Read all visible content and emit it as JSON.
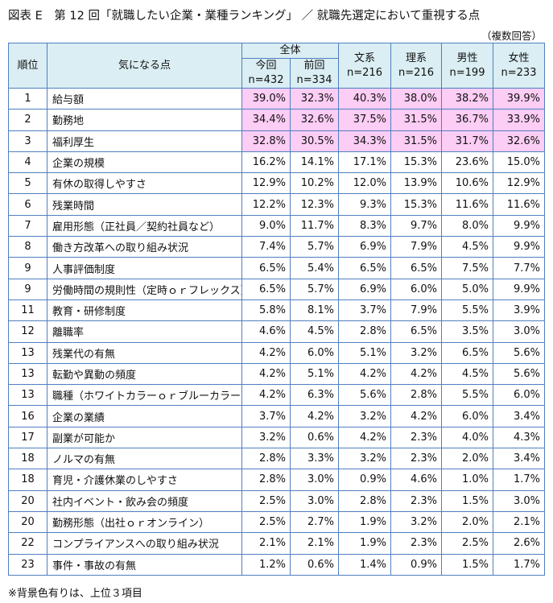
{
  "title": "図表 E　第 12 回「就職したい企業・業種ランキング」 ／ 就職先選定において重視する点",
  "note": "（複数回答）",
  "table": {
    "header": {
      "rank": "順位",
      "item": "気になる点",
      "group": "全体",
      "columns": [
        {
          "label": "今回",
          "n": "n=432"
        },
        {
          "label": "前回",
          "n": "n=334"
        },
        {
          "label": "文系",
          "n": "n=216"
        },
        {
          "label": "理系",
          "n": "n=216"
        },
        {
          "label": "男性",
          "n": "n=199"
        },
        {
          "label": "女性",
          "n": "n=233"
        }
      ]
    },
    "rows": [
      [
        "1",
        "給与額",
        "39.0%",
        "32.3%",
        "40.3%",
        "38.0%",
        "38.2%",
        "39.9%"
      ],
      [
        "2",
        "勤務地",
        "34.4%",
        "32.6%",
        "37.5%",
        "31.5%",
        "36.7%",
        "33.9%"
      ],
      [
        "3",
        "福利厚生",
        "32.8%",
        "30.5%",
        "34.3%",
        "31.5%",
        "31.7%",
        "32.6%"
      ],
      [
        "4",
        "企業の規模",
        "16.2%",
        "14.1%",
        "17.1%",
        "15.3%",
        "23.6%",
        "15.0%"
      ],
      [
        "5",
        "有休の取得しやすさ",
        "12.9%",
        "10.2%",
        "12.0%",
        "13.9%",
        "10.6%",
        "12.9%"
      ],
      [
        "6",
        "残業時間",
        "12.2%",
        "12.3%",
        "9.3%",
        "15.3%",
        "11.6%",
        "11.6%"
      ],
      [
        "7",
        "雇用形態（正社員／契約社員など）",
        "9.0%",
        "11.7%",
        "8.3%",
        "9.7%",
        "8.0%",
        "9.9%"
      ],
      [
        "8",
        "働き方改革への取り組み状況",
        "7.4%",
        "5.7%",
        "6.9%",
        "7.9%",
        "4.5%",
        "9.9%"
      ],
      [
        "9",
        "人事評価制度",
        "6.5%",
        "5.4%",
        "6.5%",
        "6.5%",
        "7.5%",
        "7.7%"
      ],
      [
        "9",
        "労働時間の規則性（定時ｏｒフレックス）",
        "6.5%",
        "5.7%",
        "6.9%",
        "6.0%",
        "5.0%",
        "9.9%"
      ],
      [
        "11",
        "教育・研修制度",
        "5.8%",
        "8.1%",
        "3.7%",
        "7.9%",
        "5.5%",
        "3.9%"
      ],
      [
        "12",
        "離職率",
        "4.6%",
        "4.5%",
        "2.8%",
        "6.5%",
        "3.5%",
        "3.0%"
      ],
      [
        "13",
        "残業代の有無",
        "4.2%",
        "6.0%",
        "5.1%",
        "3.2%",
        "6.5%",
        "5.6%"
      ],
      [
        "13",
        "転勤や異動の頻度",
        "4.2%",
        "5.1%",
        "4.2%",
        "4.2%",
        "4.5%",
        "5.6%"
      ],
      [
        "13",
        "職種（ホワイトカラーｏｒブルーカラー）",
        "4.2%",
        "6.3%",
        "5.6%",
        "2.8%",
        "5.5%",
        "6.0%"
      ],
      [
        "16",
        "企業の業績",
        "3.7%",
        "4.2%",
        "3.2%",
        "4.2%",
        "6.0%",
        "3.4%"
      ],
      [
        "17",
        "副業が可能か",
        "3.2%",
        "0.6%",
        "4.2%",
        "2.3%",
        "4.0%",
        "4.3%"
      ],
      [
        "18",
        "ノルマの有無",
        "2.8%",
        "3.3%",
        "3.2%",
        "2.3%",
        "2.0%",
        "3.4%"
      ],
      [
        "18",
        "育児・介護休業のしやすさ",
        "2.8%",
        "3.0%",
        "0.9%",
        "4.6%",
        "1.0%",
        "1.7%"
      ],
      [
        "20",
        "社内イベント・飲み会の頻度",
        "2.5%",
        "3.0%",
        "2.8%",
        "2.3%",
        "1.5%",
        "3.0%"
      ],
      [
        "20",
        "勤務形態（出社ｏｒオンライン）",
        "2.5%",
        "2.7%",
        "1.9%",
        "3.2%",
        "2.0%",
        "2.1%"
      ],
      [
        "22",
        "コンプライアンスへの取り組み状況",
        "2.1%",
        "2.1%",
        "1.9%",
        "2.3%",
        "2.5%",
        "2.6%"
      ],
      [
        "23",
        "事件・事故の有無",
        "1.2%",
        "0.6%",
        "1.4%",
        "0.9%",
        "1.5%",
        "1.7%"
      ]
    ]
  },
  "footnote": "※背景色有りは、上位３項目"
}
